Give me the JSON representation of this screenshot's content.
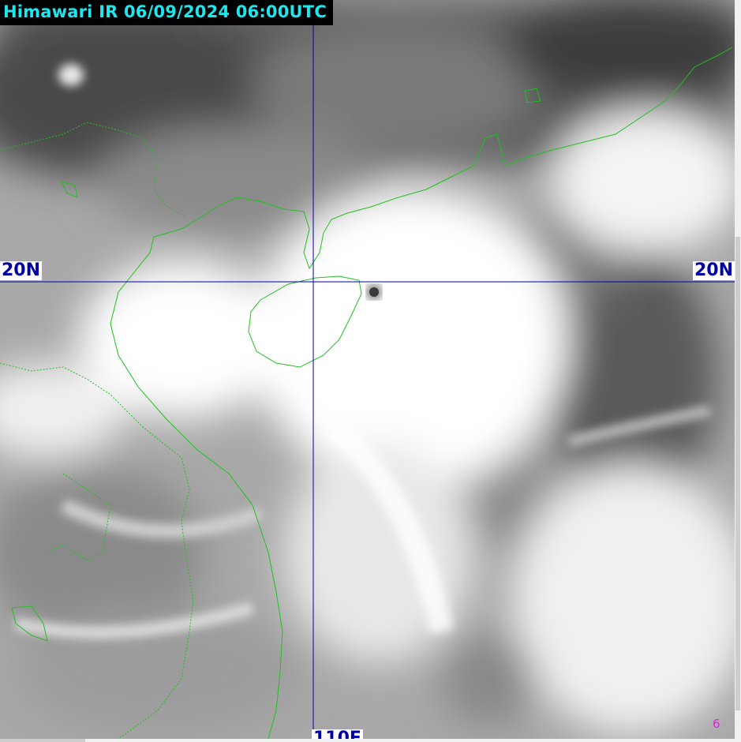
{
  "window": {
    "title": "Himawari IR 06/09/2024 06:00UTC"
  },
  "map": {
    "latitude_label_left": "20N",
    "latitude_label_right": "20N",
    "longitude_label_bottom": "110E",
    "frame_number": "6",
    "colors": {
      "title_text": "#1ee6ee",
      "title_background": "#000000",
      "grid_line": "#0000a8",
      "coastline": "#20c020",
      "frame_number": "#e020e0"
    }
  }
}
